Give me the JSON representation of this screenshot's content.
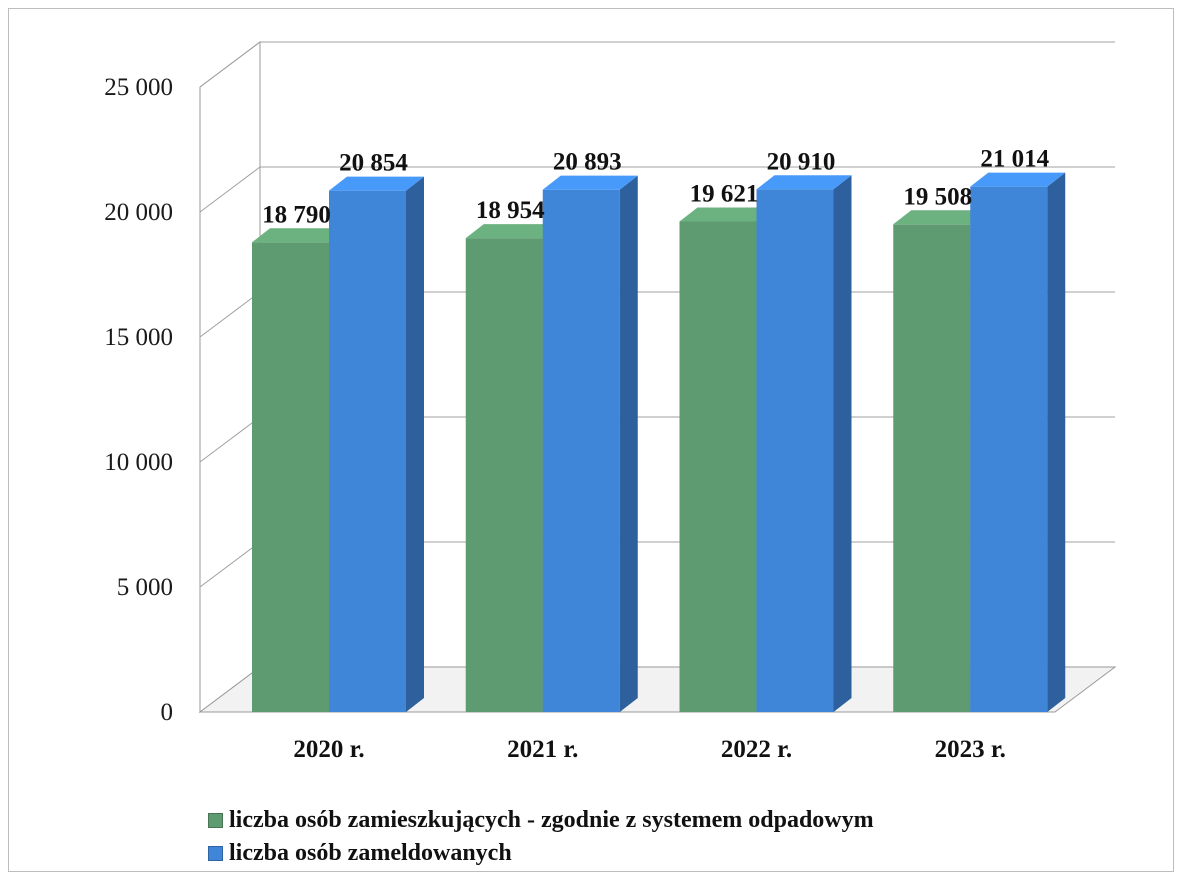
{
  "chart_data": {
    "type": "bar",
    "categories": [
      "2020 r.",
      "2021 r.",
      "2022 r.",
      "2023 r."
    ],
    "series": [
      {
        "name": "liczba osób zamieszkujących - zgodnie z systemem odpadowym",
        "values": [
          18790,
          18954,
          19621,
          19508
        ],
        "labels": [
          "18 790",
          "18 954",
          "19 621",
          "19 508"
        ],
        "color": "#5e9b70"
      },
      {
        "name": "liczba osób zameldowanych",
        "values": [
          20854,
          20893,
          20910,
          21014
        ],
        "labels": [
          "20 854",
          "20 893",
          "20 910",
          "21 014"
        ],
        "color": "#3f86d9"
      }
    ],
    "ylim": [
      0,
      25000
    ],
    "yticks": [
      0,
      5000,
      10000,
      15000,
      20000,
      25000
    ],
    "ytick_labels": [
      "0",
      "5 000",
      "10 000",
      "15 000",
      "20 000",
      "25 000"
    ],
    "grid": true,
    "style": "3d-clustered-column",
    "legend_position": "bottom"
  }
}
